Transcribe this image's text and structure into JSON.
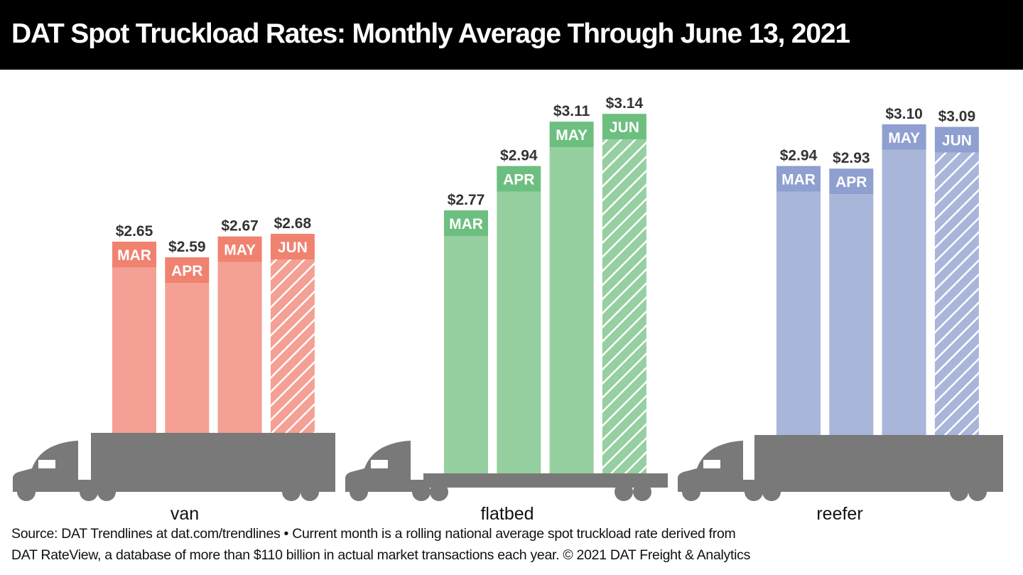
{
  "title": "DAT Spot Truckload Rates: Monthly Average Through June 13, 2021",
  "footer": {
    "line1": "Source: DAT Trendlines at dat.com/trendlines • Current month is a rolling national average spot truckload rate derived from",
    "line2": "DAT RateView, a database of more than $110 billion in actual market transactions each year. © 2021 DAT Freight & Analytics"
  },
  "chart_data": {
    "type": "bar",
    "title": "DAT Spot Truckload Rates: Monthly Average Through June 13, 2021",
    "categories": [
      "MAR",
      "APR",
      "MAY",
      "JUN"
    ],
    "partial_month": "JUN",
    "series": [
      {
        "name": "van",
        "values": [
          2.65,
          2.59,
          2.67,
          2.68
        ],
        "labels": [
          "$2.65",
          "$2.59",
          "$2.67",
          "$2.68"
        ],
        "color": "#f4a094",
        "band_color": "#f08270"
      },
      {
        "name": "flatbed",
        "values": [
          2.77,
          2.94,
          3.11,
          3.14
        ],
        "labels": [
          "$2.77",
          "$2.94",
          "$3.11",
          "$3.14"
        ],
        "color": "#96cfa0",
        "band_color": "#6dbf7f"
      },
      {
        "name": "reefer",
        "values": [
          2.94,
          2.93,
          3.1,
          3.09
        ],
        "labels": [
          "$2.94",
          "$2.93",
          "$3.10",
          "$3.09"
        ],
        "color": "#a9b6da",
        "band_color": "#8e9fd0"
      }
    ],
    "truck_color": "#797979",
    "value_label_color": "#333333"
  }
}
